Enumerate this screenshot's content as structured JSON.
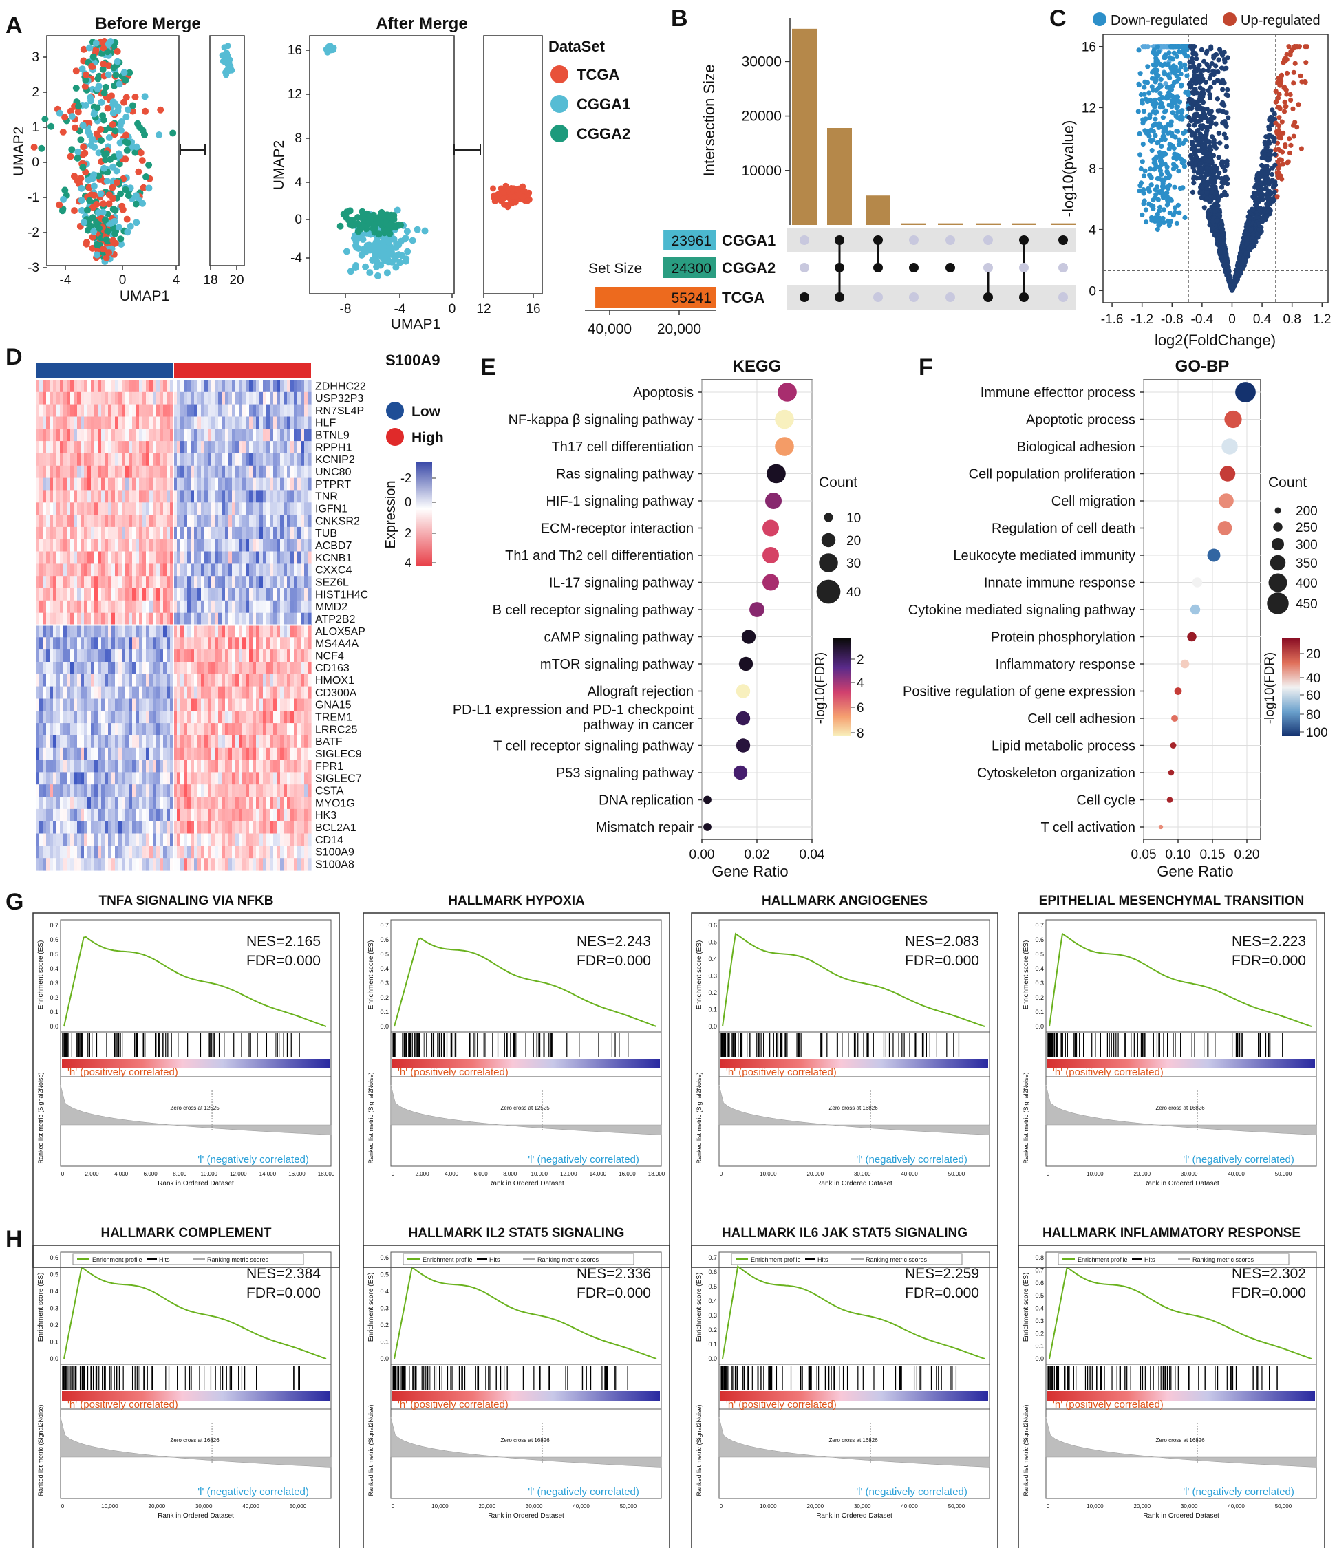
{
  "panels": {
    "a": {
      "letter": "A",
      "titles": [
        "Before Merge",
        "After Merge"
      ],
      "ylabel": "UMAP2",
      "xlabel": "UMAP1",
      "legend_title": "DataSet",
      "legend": [
        "TCGA",
        "CGGA1",
        "CGGA2"
      ],
      "colors": {
        "TCGA": "#e8513a",
        "CGGA1": "#56bcd4",
        "CGGA2": "#1d9a7c"
      },
      "before_yticks": [
        "3",
        "2",
        "1",
        "0",
        "-1",
        "-2",
        "-3"
      ],
      "before_xticks": [
        "-4",
        "0",
        "4",
        "18",
        "20"
      ],
      "after_yticks": [
        "16",
        "12",
        "8",
        "4",
        "0",
        "-4"
      ],
      "after_xticks": [
        "-8",
        "-4",
        "0",
        "12",
        "16"
      ]
    },
    "b": {
      "letter": "B",
      "ylabel": "Intersection Size",
      "yticks": [
        "30000",
        "20000",
        "10000"
      ],
      "intersection_values": [
        36000,
        17800,
        5400,
        300,
        300,
        300,
        300,
        300
      ],
      "set_size_label": "Set Size",
      "sets": [
        {
          "name": "CGGA1",
          "size": "23961",
          "color": "#4bb8cf"
        },
        {
          "name": "CGGA2",
          "size": "24300",
          "color": "#2a9d81"
        },
        {
          "name": "TCGA",
          "size": "55241",
          "color": "#ed6a1e"
        }
      ],
      "setsize_ticks": [
        "40,000",
        "20,000"
      ],
      "bar_color": "#b5884a"
    },
    "c": {
      "letter": "C",
      "legend": [
        "Down-regulated",
        "Up-regulated"
      ],
      "colors": {
        "down": "#2c8fc9",
        "up": "#c2462f"
      },
      "ylabel": "-log10(pvalue)",
      "xlabel": "log2(FoldChange)",
      "yticks": [
        "16",
        "12",
        "8",
        "4",
        "0"
      ],
      "xticks": [
        "-1.6",
        "-1.2",
        "-0.8",
        "-0.4",
        "0",
        "0.4",
        "0.8",
        "1.2"
      ]
    },
    "d": {
      "letter": "D",
      "title": "S100A9",
      "legend": [
        "Low",
        "High"
      ],
      "colors": {
        "Low": "#1f4e96",
        "High": "#e02a2a"
      },
      "colorbar_label": "Expression",
      "colorbar_ticks": [
        "-2",
        "0",
        "2",
        "4"
      ],
      "genes": [
        "ZDHHC22",
        "USP32P3",
        "RN7SL4P",
        "HLF",
        "BTNL9",
        "RPPH1",
        "KCNIP2",
        "UNC80",
        "PTPRT",
        "TNR",
        "IGFN1",
        "CNKSR2",
        "TUB",
        "ACBD7",
        "KCNB1",
        "CXXC4",
        "SEZ6L",
        "HIST1H4C",
        "MMD2",
        "ATP2B2",
        "ALOX5AP",
        "MS4A4A",
        "NCF4",
        "CD163",
        "HMOX1",
        "CD300A",
        "GNA15",
        "TREM1",
        "LRRC25",
        "BATF",
        "SIGLEC9",
        "FPR1",
        "SIGLEC7",
        "CSTA",
        "MYO1G",
        "HK3",
        "BCL2A1",
        "CD14",
        "S100A9",
        "S100A8"
      ]
    },
    "e": {
      "letter": "E",
      "title": "KEGG",
      "xlabel": "Gene Ratio",
      "xticks": [
        "0.00",
        "0.02",
        "0.04"
      ],
      "count_label": "Count",
      "count_ticks": [
        "10",
        "20",
        "30",
        "40"
      ],
      "fdr_label": "-log10(FDR)",
      "fdr_ticks": [
        "2",
        "4",
        "6",
        "8"
      ]
    },
    "f": {
      "letter": "F",
      "title": "GO-BP",
      "xlabel": "Gene Ratio",
      "xticks": [
        "0.05",
        "0.10",
        "0.15",
        "0.20"
      ],
      "count_label": "Count",
      "count_ticks": [
        "200",
        "250",
        "300",
        "350",
        "400",
        "450"
      ],
      "fdr_label": "-log10(FDR)",
      "fdr_ticks": [
        "20",
        "40",
        "60",
        "80",
        "100"
      ]
    },
    "g": {
      "letter": "G"
    },
    "h": {
      "letter": "H"
    }
  },
  "gsea_common": {
    "es_label": "Enrichment score (ES)",
    "rank_label": "Ranked list metric (Signal2Noise)",
    "xlabel": "Rank in Ordered Dataset",
    "pos": "'h' (positively correlated)",
    "neg": "'l' (negatively correlated)",
    "legend": [
      "Enrichment profile",
      "Hits",
      "Ranking metric scores"
    ]
  },
  "gsea": [
    {
      "title": "TNFA SIGNALING VIA NFKB",
      "nes": "NES=2.165",
      "fdr": "FDR=0.000",
      "zero": "Zero cross at 12525",
      "xticks": [
        "0",
        "2,000",
        "4,000",
        "6,000",
        "8,000",
        "10,000",
        "12,000",
        "14,000",
        "16,000",
        "18,000"
      ],
      "yticks": [
        "0.7",
        "0.6",
        "0.5",
        "0.4",
        "0.3",
        "0.2",
        "0.1",
        "0.0"
      ]
    },
    {
      "title": "HALLMARK HYPOXIA",
      "nes": "NES=2.243",
      "fdr": "FDR=0.000",
      "zero": "Zero cross at 12525",
      "xticks": [
        "0",
        "2,000",
        "4,000",
        "6,000",
        "8,000",
        "10,000",
        "12,000",
        "14,000",
        "16,000",
        "18,000"
      ],
      "yticks": [
        "0.7",
        "0.6",
        "0.5",
        "0.4",
        "0.3",
        "0.2",
        "0.1",
        "0.0"
      ]
    },
    {
      "title": "HALLMARK ANGIOGENES",
      "nes": "NES=2.083",
      "fdr": "FDR=0.000",
      "zero": "Zero cross at 16826",
      "xticks": [
        "0",
        "10,000",
        "20,000",
        "30,000",
        "40,000",
        "50,000"
      ],
      "yticks": [
        "0.6",
        "0.5",
        "0.4",
        "0.3",
        "0.2",
        "0.1",
        "0.0"
      ]
    },
    {
      "title": "EPITHELIAL MESENCHYMAL TRANSITION",
      "nes": "NES=2.223",
      "fdr": "FDR=0.000",
      "zero": "Zero cross at 16826",
      "xticks": [
        "0",
        "10,000",
        "20,000",
        "30,000",
        "40,000",
        "50,000"
      ],
      "yticks": [
        "0.7",
        "0.6",
        "0.5",
        "0.4",
        "0.3",
        "0.2",
        "0.1",
        "0.0"
      ]
    },
    {
      "title": "HALLMARK  COMPLEMENT",
      "nes": "NES=2.384",
      "fdr": "FDR=0.000",
      "zero": "Zero cross at 16826",
      "xticks": [
        "0",
        "10,000",
        "20,000",
        "30,000",
        "40,000",
        "50,000"
      ],
      "yticks": [
        "0.6",
        "0.5",
        "0.4",
        "0.3",
        "0.2",
        "0.1",
        "0.0"
      ]
    },
    {
      "title": "HALLMARK  IL2 STAT5 SIGNALING",
      "nes": "NES=2.336",
      "fdr": "FDR=0.000",
      "zero": "Zero cross at 16826",
      "xticks": [
        "0",
        "10,000",
        "20,000",
        "30,000",
        "40,000",
        "50,000"
      ],
      "yticks": [
        "0.6",
        "0.5",
        "0.4",
        "0.3",
        "0.2",
        "0.1",
        "0.0"
      ]
    },
    {
      "title": "HALLMARK  IL6 JAK STAT5 SIGNALING",
      "nes": "NES=2.259",
      "fdr": "FDR=0.000",
      "zero": "Zero cross at 16826",
      "xticks": [
        "0",
        "10,000",
        "20,000",
        "30,000",
        "40,000",
        "50,000"
      ],
      "yticks": [
        "0.7",
        "0.6",
        "0.5",
        "0.4",
        "0.3",
        "0.2",
        "0.1",
        "0.0"
      ]
    },
    {
      "title": "HALLMARK  INFLAMMATORY RESPONSE",
      "nes": "NES=2.302",
      "fdr": "FDR=0.000",
      "zero": "Zero cross at 16826",
      "xticks": [
        "0",
        "10,000",
        "20,000",
        "30,000",
        "40,000",
        "50,000"
      ],
      "yticks": [
        "0.8",
        "0.7",
        "0.6",
        "0.5",
        "0.4",
        "0.3",
        "0.2",
        "0.1",
        "0.0"
      ]
    }
  ],
  "chart_data": [
    {
      "type": "bar",
      "panel": "B",
      "ylabel": "Intersection Size",
      "values": [
        36000,
        17800,
        5400,
        300,
        300,
        300,
        300,
        300
      ],
      "set_sizes": {
        "CGGA1": 23961,
        "CGGA2": 24300,
        "TCGA": 55241
      }
    },
    {
      "type": "scatter",
      "panel": "E",
      "title": "KEGG",
      "xlabel": "Gene Ratio",
      "xlim": [
        0,
        0.04
      ],
      "categories": [
        "Apoptosis",
        "NF-kappa β signaling pathway",
        "Th17 cell differentiation",
        "Ras signaling pathway",
        "HIF-1 signaling pathway",
        "ECM-receptor interaction",
        "Th1 and Th2 cell differentiation",
        "IL-17 signaling pathway",
        "B cell receptor signaling pathway",
        "cAMP signaling pathway",
        "mTOR signaling pathway",
        "Allograft rejection",
        "PD-L1 expression and PD-1 checkpoint pathway in cancer",
        "T cell receptor signaling pathway",
        "P53 signaling pathway",
        "DNA replication",
        "Mismatch repair"
      ],
      "x": [
        0.031,
        0.03,
        0.03,
        0.027,
        0.026,
        0.025,
        0.025,
        0.025,
        0.02,
        0.017,
        0.016,
        0.015,
        0.015,
        0.015,
        0.014,
        0.002,
        0.002
      ],
      "count": [
        30,
        30,
        30,
        30,
        25,
        25,
        25,
        25,
        22,
        20,
        20,
        20,
        20,
        20,
        20,
        8,
        8
      ],
      "fdr": [
        3.5,
        8,
        6.5,
        0.5,
        3,
        4.5,
        4.5,
        3.5,
        3,
        0.5,
        0.5,
        8,
        1.5,
        1,
        2,
        0.5,
        0.5
      ]
    },
    {
      "type": "scatter",
      "panel": "F",
      "title": "GO-BP",
      "xlabel": "Gene Ratio",
      "xlim": [
        0.05,
        0.22
      ],
      "categories": [
        "Immune effecttor process",
        "Apoptotic process",
        "Biological adhesion",
        "Cell population proliferation",
        "Cell migration",
        "Regulation of cell death",
        "Leukocyte mediated immunity",
        "Innate immune response",
        "Cytokine mediated signaling pathway",
        "Protein phosphorylation",
        "Inflammatory response",
        "Positive regulation of gene expression",
        "Cell cell adhesion",
        "Lipid metabolic process",
        "Cytoskeleton organization",
        "Cell cycle",
        "T cell activation"
      ],
      "x": [
        0.198,
        0.18,
        0.175,
        0.172,
        0.17,
        0.168,
        0.152,
        0.128,
        0.125,
        0.12,
        0.11,
        0.1,
        0.095,
        0.093,
        0.09,
        0.088,
        0.075
      ],
      "count": [
        430,
        380,
        360,
        350,
        340,
        330,
        310,
        260,
        260,
        250,
        240,
        220,
        210,
        200,
        195,
        195,
        170
      ],
      "fdr": [
        100,
        30,
        60,
        25,
        40,
        38,
        90,
        55,
        70,
        15,
        50,
        25,
        35,
        18,
        18,
        18,
        40
      ]
    }
  ]
}
